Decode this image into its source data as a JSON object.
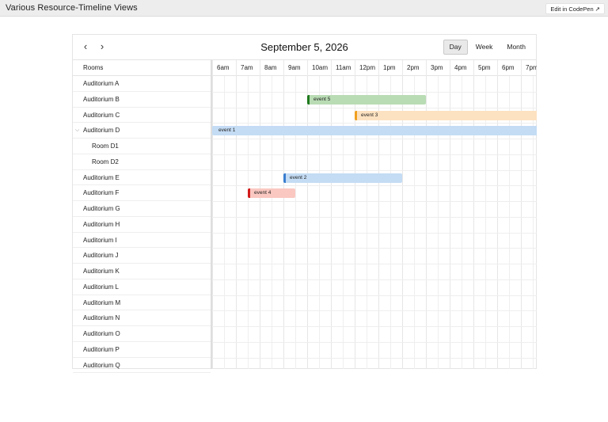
{
  "page": {
    "title": "Various Resource-Timeline Views",
    "codepen_label": "Edit in CodePen ↗"
  },
  "calendar": {
    "prev_label": "‹",
    "next_label": "›",
    "title": "September 5, 2026",
    "views": [
      {
        "label": "Day",
        "active": true
      },
      {
        "label": "Week",
        "active": false
      },
      {
        "label": "Month",
        "active": false
      }
    ],
    "resource_header": "Rooms",
    "resources": [
      {
        "label": "Auditorium A",
        "child": false
      },
      {
        "label": "Auditorium B",
        "child": false
      },
      {
        "label": "Auditorium C",
        "child": false
      },
      {
        "label": "Auditorium D",
        "child": false,
        "expanded": true
      },
      {
        "label": "Room D1",
        "child": true
      },
      {
        "label": "Room D2",
        "child": true
      },
      {
        "label": "Auditorium E",
        "child": false
      },
      {
        "label": "Auditorium F",
        "child": false
      },
      {
        "label": "Auditorium G",
        "child": false
      },
      {
        "label": "Auditorium H",
        "child": false
      },
      {
        "label": "Auditorium I",
        "child": false
      },
      {
        "label": "Auditorium J",
        "child": false
      },
      {
        "label": "Auditorium K",
        "child": false
      },
      {
        "label": "Auditorium L",
        "child": false
      },
      {
        "label": "Auditorium M",
        "child": false
      },
      {
        "label": "Auditorium N",
        "child": false
      },
      {
        "label": "Auditorium O",
        "child": false
      },
      {
        "label": "Auditorium P",
        "child": false
      },
      {
        "label": "Auditorium Q",
        "child": false
      }
    ],
    "time_slots": [
      "6am",
      "7am",
      "8am",
      "9am",
      "10am",
      "11am",
      "12pm",
      "1pm",
      "2pm",
      "3pm",
      "4pm",
      "5pm",
      "6pm",
      "7pm"
    ],
    "events": [
      {
        "title": "event 5",
        "row": 1,
        "start": 10,
        "end": 15,
        "color": "#b9dcb4",
        "accent": "#1f7a1f"
      },
      {
        "title": "event 3",
        "row": 2,
        "start": 12,
        "end": 20,
        "color": "#fde2c1",
        "accent": "#f0a020"
      },
      {
        "title": "event 1",
        "row": 3,
        "start": 6,
        "end": 20,
        "color": "#c4dcf4",
        "accent": "#c4dcf4"
      },
      {
        "title": "event 2",
        "row": 6,
        "start": 9,
        "end": 14,
        "color": "#c4dcf4",
        "accent": "#3a7ecf"
      },
      {
        "title": "event 4",
        "row": 7,
        "start": 7.5,
        "end": 9.5,
        "color": "#fac8c1",
        "accent": "#d21a1a"
      }
    ]
  }
}
